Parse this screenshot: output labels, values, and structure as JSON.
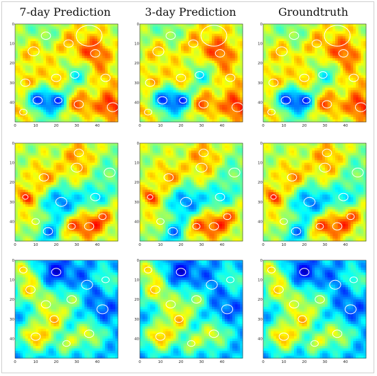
{
  "columns": [
    {
      "title": "7-day Prediction"
    },
    {
      "title": "3-day Prediction"
    },
    {
      "title": "Groundtruth"
    }
  ],
  "axes": {
    "x_ticks": [
      "0",
      "10",
      "20",
      "30",
      "40"
    ],
    "y_ticks": [
      "0",
      "10",
      "20",
      "30",
      "40"
    ],
    "grid_size": 50
  },
  "rows": [
    {
      "palette": "warm-mixed"
    },
    {
      "palette": "yellow-green"
    },
    {
      "palette": "cool-blue"
    }
  ],
  "colors": {
    "jet": [
      "#00007f",
      "#0000ff",
      "#007fff",
      "#00ffff",
      "#7fff7f",
      "#ffff00",
      "#ff7f00",
      "#ff0000",
      "#7f0000"
    ],
    "contour": "#ffffff"
  }
}
